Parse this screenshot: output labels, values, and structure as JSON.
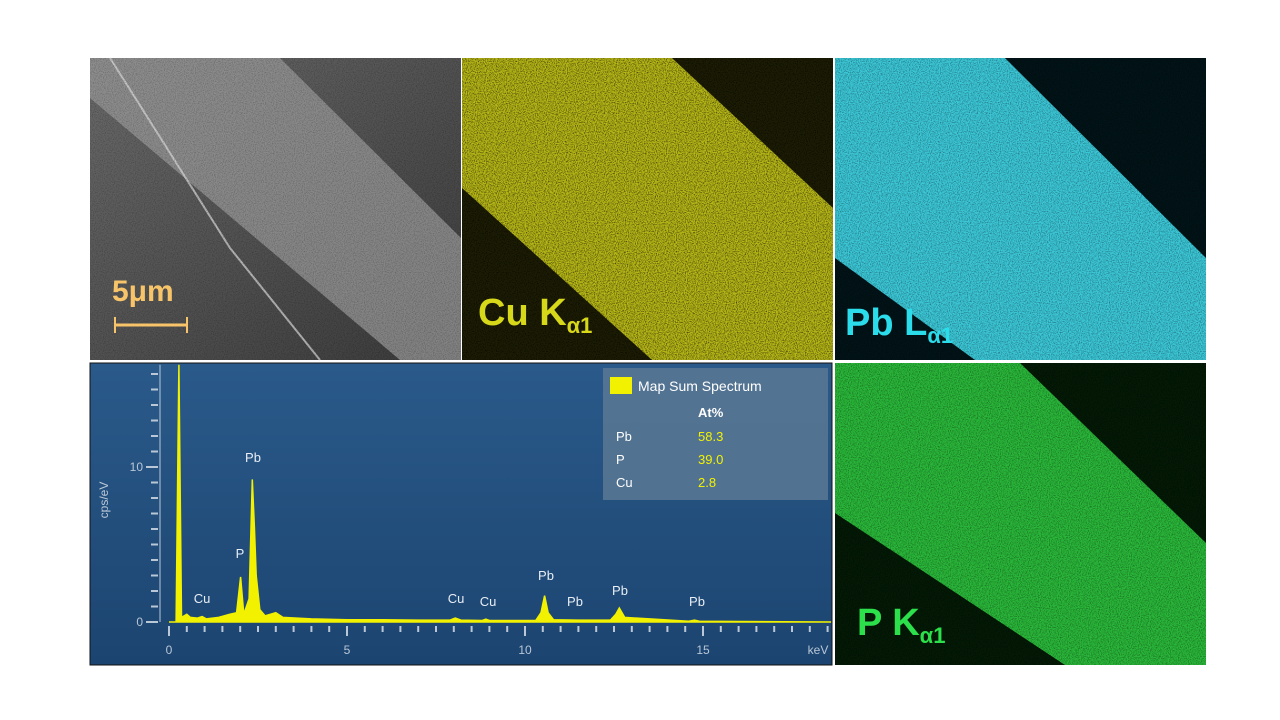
{
  "panels": {
    "sem": {
      "scale_label": "5μm"
    },
    "cu_map": {
      "label": "Cu K",
      "subscript": "α1"
    },
    "pb_map": {
      "label": "Pb L",
      "subscript": "α1"
    },
    "p_map": {
      "label": "P K",
      "subscript": "α1"
    }
  },
  "chart_data": {
    "type": "area",
    "x": [
      0,
      0.2,
      0.277,
      0.35,
      0.5,
      0.6,
      0.8,
      0.93,
      1.05,
      1.4,
      1.7,
      1.9,
      2.01,
      2.1,
      2.25,
      2.34,
      2.4,
      2.45,
      2.55,
      2.7,
      3.0,
      3.2,
      4,
      5,
      6,
      7,
      7.9,
      8.04,
      8.2,
      8.8,
      8.9,
      9.0,
      10.3,
      10.45,
      10.55,
      10.65,
      10.8,
      11.5,
      12.4,
      12.55,
      12.65,
      12.8,
      14.6,
      14.76,
      14.9,
      16,
      18.6
    ],
    "values": [
      0,
      0,
      16.6,
      0.3,
      0.5,
      0.3,
      0.25,
      0.35,
      0.2,
      0.3,
      0.5,
      0.6,
      2.9,
      0.5,
      1.5,
      9.2,
      6.1,
      3,
      0.8,
      0.4,
      0.6,
      0.3,
      0.2,
      0.15,
      0.15,
      0.12,
      0.12,
      0.25,
      0.12,
      0.1,
      0.18,
      0.1,
      0.1,
      0.6,
      1.7,
      0.6,
      0.15,
      0.12,
      0.12,
      0.5,
      0.9,
      0.3,
      0.05,
      0.12,
      0.05,
      0.03,
      0
    ],
    "color": "#f2f200",
    "xlim": [
      0,
      18.6
    ],
    "ylim": [
      0,
      16.6
    ],
    "xticks": [
      0,
      5,
      10,
      15
    ],
    "yticks": [
      0,
      10
    ],
    "x_minor_ticks": [
      0.5,
      1,
      1.5,
      2,
      2.5,
      3,
      3.5,
      4,
      4.5,
      5.5,
      6,
      6.5,
      7,
      7.5,
      8,
      8.5,
      9,
      9.5,
      10.5,
      11,
      11.5,
      12,
      12.5,
      13,
      13.5,
      14,
      14.5,
      15.5,
      16,
      16.5,
      17,
      17.5,
      18,
      18.5
    ],
    "y_minor_ticks": [
      1,
      2,
      3,
      4,
      5,
      6,
      7,
      8,
      9,
      11,
      12,
      13,
      14,
      15,
      16
    ],
    "xlabel": "keV",
    "ylabel": "cps/eV",
    "annotations": [
      "Cu",
      "P",
      "Pb",
      "Cu",
      "Cu",
      "Pb",
      "Pb",
      "Pb",
      "Pb"
    ],
    "legend": {
      "title": "Map Sum Spectrum",
      "header": "At%",
      "rows": [
        [
          "Pb",
          "58.3"
        ],
        [
          "P",
          "39.0"
        ],
        [
          "Cu",
          "2.8"
        ]
      ]
    }
  }
}
